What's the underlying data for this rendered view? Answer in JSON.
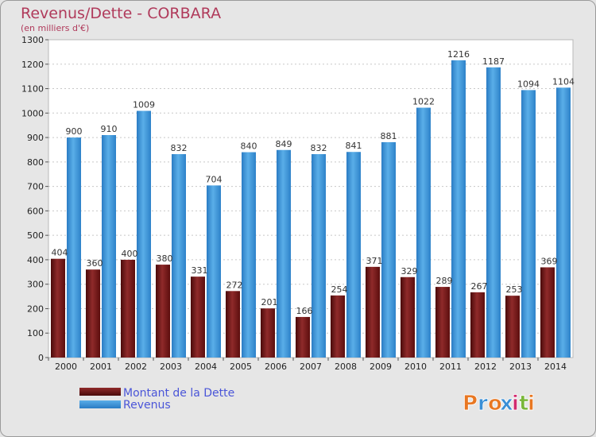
{
  "chart_data": {
    "type": "bar",
    "title": "Revenus/Dette - CORBARA",
    "subtitle": "(en milliers d'€)",
    "categories": [
      "2000",
      "2001",
      "2002",
      "2003",
      "2004",
      "2005",
      "2006",
      "2007",
      "2008",
      "2009",
      "2010",
      "2011",
      "2012",
      "2013",
      "2014"
    ],
    "series": [
      {
        "name": "Montant de la Dette",
        "color": "#7a1a1a",
        "values": [
          404,
          360,
          400,
          380,
          331,
          272,
          201,
          166,
          254,
          371,
          329,
          289,
          267,
          253,
          369
        ]
      },
      {
        "name": "Revenus",
        "color": "#3f95d8",
        "values": [
          900,
          910,
          1009,
          832,
          704,
          840,
          849,
          832,
          841,
          881,
          1022,
          1216,
          1187,
          1094,
          1104
        ]
      }
    ],
    "ylim": [
      0,
      1300
    ],
    "yticks": [
      0,
      100,
      200,
      300,
      400,
      500,
      600,
      700,
      800,
      900,
      1000,
      1100,
      1200,
      1300
    ],
    "grid": true,
    "legend_position": "bottom-left"
  },
  "logo": {
    "text": "Proxiti",
    "letters": [
      "P",
      "r",
      "o",
      "x",
      "i",
      "t",
      "i"
    ],
    "colors": [
      "#e87722",
      "#3a8fd6",
      "#e87722",
      "#3a8fd6",
      "#d12b6e",
      "#7ab73a",
      "#e87722"
    ]
  }
}
